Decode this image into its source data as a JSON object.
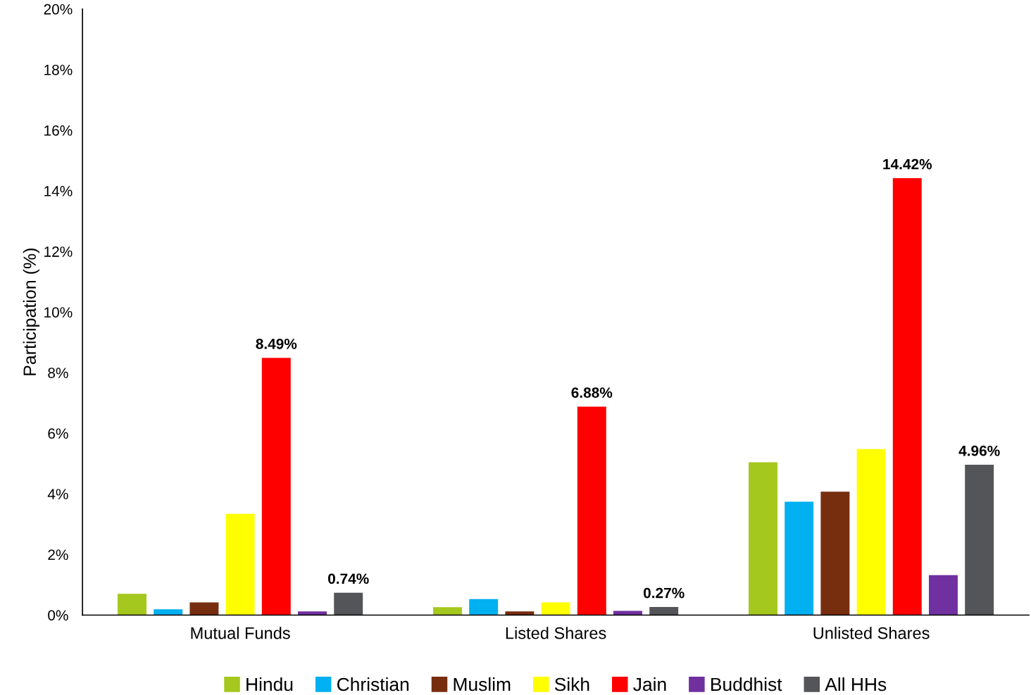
{
  "chart_data": {
    "type": "bar",
    "ylabel": "Participation (%)",
    "categories": [
      "Mutual Funds",
      "Listed Shares",
      "Unlisted Shares"
    ],
    "series": [
      {
        "name": "Hindu",
        "color": "#a5c81e",
        "values": [
          0.7,
          0.26,
          5.04
        ]
      },
      {
        "name": "Christian",
        "color": "#00b0f0",
        "values": [
          0.19,
          0.53,
          3.74
        ]
      },
      {
        "name": "Muslim",
        "color": "#772e0f",
        "values": [
          0.42,
          0.12,
          4.07
        ]
      },
      {
        "name": "Sikh",
        "color": "#ffff00",
        "values": [
          3.34,
          0.42,
          5.48
        ]
      },
      {
        "name": "Jain",
        "color": "#ff0000",
        "values": [
          8.49,
          6.88,
          14.42
        ],
        "value_labels": [
          "8.49%",
          "6.88%",
          "14.42%"
        ]
      },
      {
        "name": "Buddhist",
        "color": "#7030a0",
        "values": [
          0.12,
          0.14,
          1.32
        ]
      },
      {
        "name": "All HHs",
        "color": "#545558",
        "values": [
          0.74,
          0.27,
          4.96
        ],
        "value_labels": [
          "0.74%",
          "0.27%",
          "4.96%"
        ]
      }
    ],
    "ylim": [
      0,
      20
    ],
    "yticks": [
      {
        "value": 0,
        "label": "0%"
      },
      {
        "value": 2,
        "label": "2%"
      },
      {
        "value": 4,
        "label": "4%"
      },
      {
        "value": 6,
        "label": "6%"
      },
      {
        "value": 8,
        "label": "8%"
      },
      {
        "value": 10,
        "label": "10%"
      },
      {
        "value": 12,
        "label": "12%"
      },
      {
        "value": 14,
        "label": "14%"
      },
      {
        "value": 16,
        "label": "16%"
      },
      {
        "value": 18,
        "label": "18%"
      },
      {
        "value": 20,
        "label": "20%"
      }
    ],
    "grid": false,
    "legend": "bottom"
  }
}
